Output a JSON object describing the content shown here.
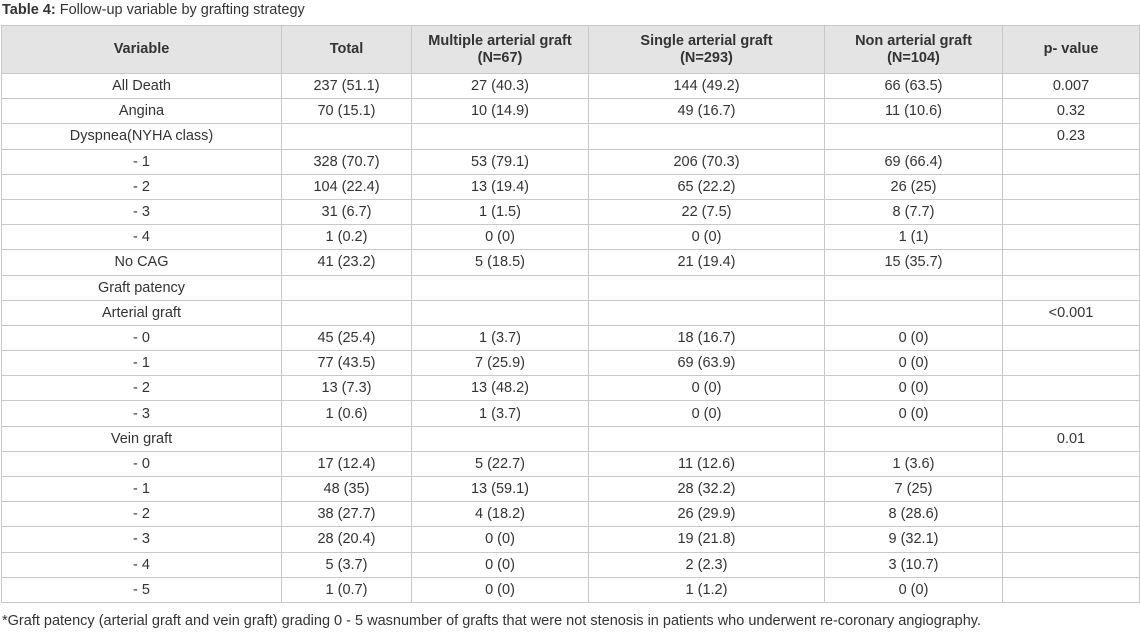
{
  "table_caption": {
    "label": "Table 4:",
    "text": " Follow-up variable by grafting strategy"
  },
  "headers": [
    {
      "line1": "Variable",
      "line2": ""
    },
    {
      "line1": "Total",
      "line2": ""
    },
    {
      "line1": "Multiple arterial graft",
      "line2": "(N=67)"
    },
    {
      "line1": "Single arterial graft",
      "line2": "(N=293)"
    },
    {
      "line1": "Non arterial graft",
      "line2": "(N=104)"
    },
    {
      "line1": "p- value",
      "line2": ""
    }
  ],
  "rows": [
    [
      "All Death",
      "237 (51.1)",
      "27 (40.3)",
      "144 (49.2)",
      "66 (63.5)",
      "0.007"
    ],
    [
      "Angina",
      "70 (15.1)",
      "10 (14.9)",
      "49 (16.7)",
      "11 (10.6)",
      "0.32"
    ],
    [
      "Dyspnea(NYHA class)",
      "",
      "",
      "",
      "",
      "0.23"
    ],
    [
      "- 1",
      "328 (70.7)",
      "53 (79.1)",
      "206 (70.3)",
      "69 (66.4)",
      ""
    ],
    [
      "- 2",
      "104 (22.4)",
      "13 (19.4)",
      "65 (22.2)",
      "26 (25)",
      ""
    ],
    [
      "- 3",
      "31 (6.7)",
      "1 (1.5)",
      "22 (7.5)",
      "8 (7.7)",
      ""
    ],
    [
      "- 4",
      "1 (0.2)",
      "0 (0)",
      "0 (0)",
      "1 (1)",
      ""
    ],
    [
      "No CAG",
      "41 (23.2)",
      "5 (18.5)",
      "21 (19.4)",
      "15 (35.7)",
      ""
    ],
    [
      "Graft patency",
      "",
      "",
      "",
      "",
      ""
    ],
    [
      "Arterial graft",
      "",
      "",
      "",
      "",
      "<0.001"
    ],
    [
      "- 0",
      "45 (25.4)",
      "1 (3.7)",
      "18 (16.7)",
      "0 (0)",
      ""
    ],
    [
      "- 1",
      "77 (43.5)",
      "7 (25.9)",
      "69 (63.9)",
      "0 (0)",
      ""
    ],
    [
      "- 2",
      "13 (7.3)",
      "13 (48.2)",
      "0 (0)",
      "0 (0)",
      ""
    ],
    [
      "- 3",
      "1 (0.6)",
      "1 (3.7)",
      "0 (0)",
      "0 (0)",
      ""
    ],
    [
      "Vein graft",
      "",
      "",
      "",
      "",
      "0.01"
    ],
    [
      "- 0",
      "17 (12.4)",
      "5 (22.7)",
      "11 (12.6)",
      "1 (3.6)",
      ""
    ],
    [
      "- 1",
      "48 (35)",
      "13 (59.1)",
      "28 (32.2)",
      "7 (25)",
      ""
    ],
    [
      "- 2",
      "38 (27.7)",
      "4 (18.2)",
      "26 (29.9)",
      "8 (28.6)",
      ""
    ],
    [
      "- 3",
      "28 (20.4)",
      "0 (0)",
      "19 (21.8)",
      "9 (32.1)",
      ""
    ],
    [
      "- 4",
      "5 (3.7)",
      "0 (0)",
      "2 (2.3)",
      "3 (10.7)",
      ""
    ],
    [
      "- 5",
      "1 (0.7)",
      "0 (0)",
      "1 (1.2)",
      "0 (0)",
      ""
    ]
  ],
  "footnote": "*Graft patency (arterial graft and vein graft) grading 0 - 5 wasnumber of grafts that were not stenosis in patients who underwent re-coronary angiography."
}
